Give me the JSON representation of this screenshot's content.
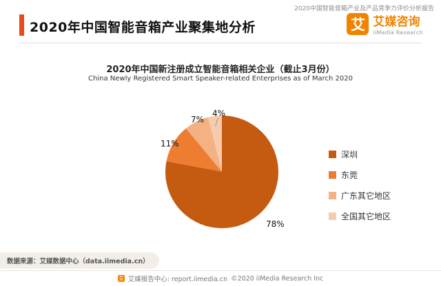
{
  "brand": {
    "accent_color": "#E8491D",
    "logo_orange": "#F08300",
    "logo_icon_glyph": "艾",
    "logo_cn": "艾媒咨询",
    "logo_en": "iiMedia Research"
  },
  "header": {
    "top_note": "2020中国智能音箱产业及产品竞争力评价分析报告",
    "title": "2020年中国智能音箱产业聚集地分析"
  },
  "chart_data": {
    "type": "pie",
    "title": "2020年中国新注册成立智能音箱相关企业（截止3月份）",
    "subtitle": "China Newly Registered Smart Speaker-related Enterprises as of March 2020",
    "legend_position": "right",
    "start_angle_deg": 0,
    "direction": "clockwise",
    "slices": [
      {
        "label": "深圳",
        "value": 78,
        "pct_label": "78%",
        "color": "#C55A11"
      },
      {
        "label": "东莞",
        "value": 11,
        "pct_label": "11%",
        "color": "#ED7D31"
      },
      {
        "label": "广东其它地区",
        "value": 7,
        "pct_label": "7%",
        "color": "#F4B183"
      },
      {
        "label": "全国其它地区",
        "value": 4,
        "pct_label": "4%",
        "color": "#F8CBAD"
      }
    ]
  },
  "footer": {
    "source": "数据来源：艾媒数据中心（data.iimedia.cn）",
    "center_left": "艾媒报告中心: report.iimedia.cn",
    "center_right": "©2020  iiMedia Research Inc"
  }
}
